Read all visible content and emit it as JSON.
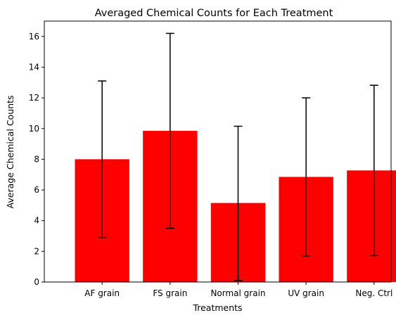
{
  "chart_data": {
    "type": "bar",
    "title": "Averaged Chemical Counts for Each Treatment",
    "xlabel": "Treatments",
    "ylabel": "Average Chemical Counts",
    "categories": [
      "AF grain",
      "FS grain",
      "Normal grain",
      "UV grain",
      "Neg. Ctrl"
    ],
    "values": [
      8.0,
      9.85,
      5.15,
      6.85,
      7.27
    ],
    "error_low": [
      2.9,
      3.5,
      0.1,
      1.7,
      1.72
    ],
    "error_high": [
      13.1,
      16.2,
      10.15,
      12.0,
      12.82
    ],
    "ylim": [
      0,
      17
    ],
    "yticks": [
      0,
      2,
      4,
      6,
      8,
      10,
      12,
      14,
      16
    ],
    "grid": false,
    "legend": "none",
    "bar_color": "#ff0000",
    "error_color": "#000000"
  }
}
